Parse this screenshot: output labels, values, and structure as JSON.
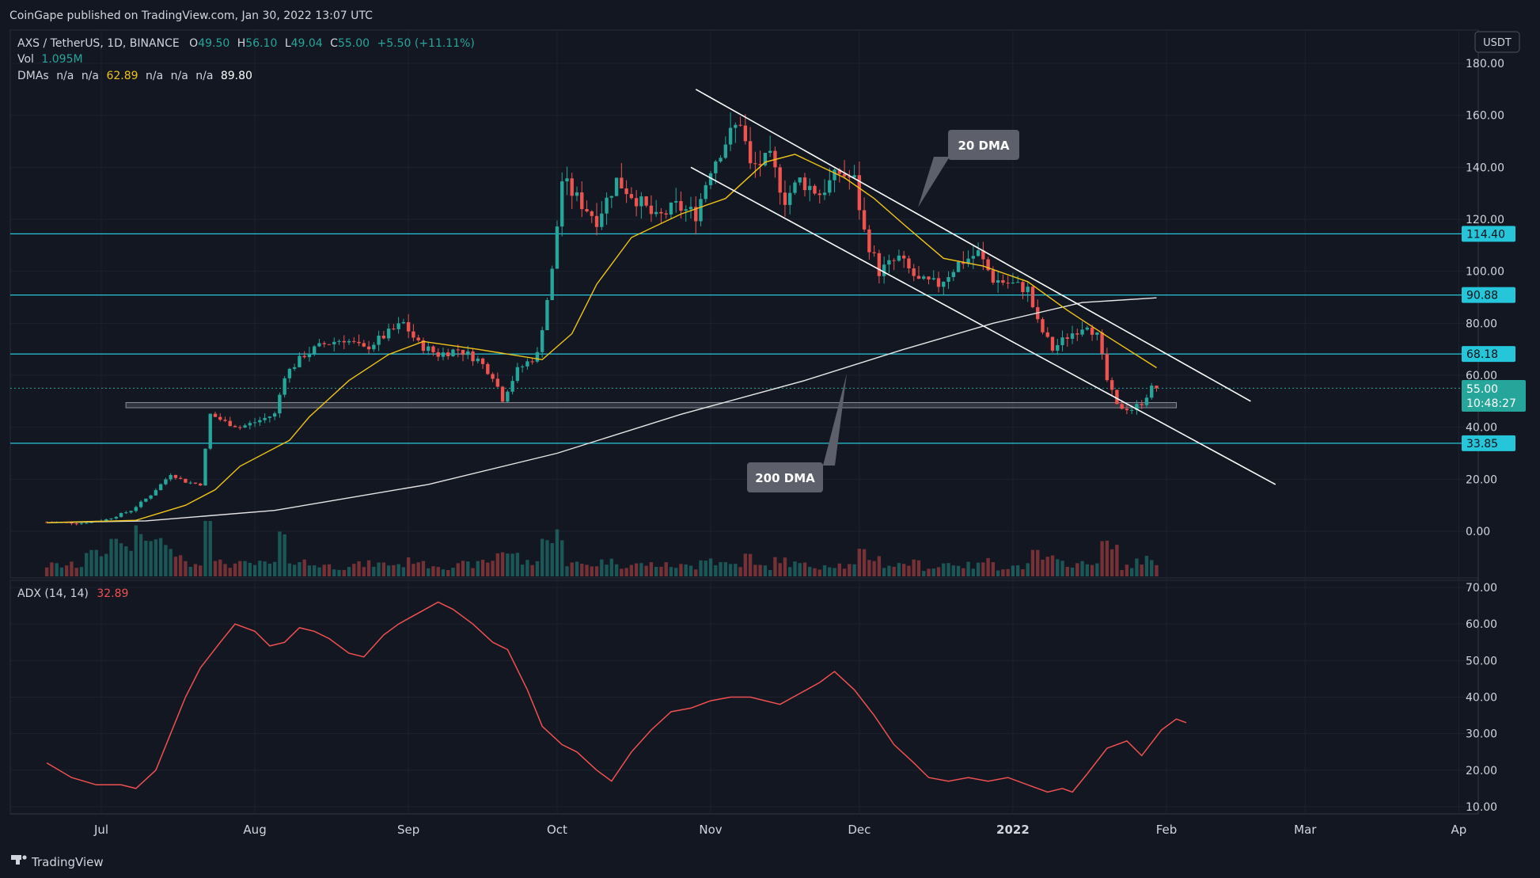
{
  "header": {
    "published": "CoinGape published on TradingView.com, Jan 30, 2022 13:07 UTC"
  },
  "legend": {
    "symbol": "AXS / TetherUS, 1D, BINANCE",
    "o_label": "O",
    "o": "49.50",
    "h_label": "H",
    "h": "56.10",
    "l_label": "L",
    "l": "49.04",
    "c_label": "C",
    "c": "55.00",
    "change": "+5.50 (+11.11%)",
    "vol_label": "Vol",
    "vol": "1.095M",
    "dmas_label": "DMAs",
    "na": "n/a",
    "dma20": "62.89",
    "dma200": "89.80"
  },
  "currency": "USDT",
  "adx_legend": {
    "label": "ADX (14, 14)",
    "value": "32.89"
  },
  "annotations": {
    "dma20_callout": "20 DMA",
    "dma200_callout": "200 DMA"
  },
  "price_tags": {
    "last": "55.00",
    "countdown": "10:48:27",
    "levels": [
      "114.40",
      "90.88",
      "68.18",
      "33.85"
    ]
  },
  "footer": {
    "brand": "TradingView"
  },
  "colors": {
    "bg": "#131722",
    "up": "#26a69a",
    "down": "#ef5350",
    "level": "#26c6da",
    "dma20": "#f0c419",
    "dma200": "#e6e6e6",
    "adx": "#f05050",
    "trendline": "#ffffff"
  },
  "chart_data": [
    {
      "type": "candlestick",
      "title": "AXS / TetherUS, 1D, BINANCE",
      "x_ticks": [
        "Jul",
        "Aug",
        "Sep",
        "Oct",
        "Nov",
        "Dec",
        "2022",
        "Feb",
        "Mar",
        "Ap"
      ],
      "y_ticks": [
        "180.00",
        "160.00",
        "140.00",
        "120.00",
        "100.00",
        "80.00",
        "60.00",
        "40.00",
        "20.00",
        "0.00"
      ],
      "ylim": [
        -15,
        185
      ],
      "date_range": [
        "2021-06-20",
        "2022-01-30"
      ],
      "horizontal_levels": [
        114.4,
        90.88,
        68.18,
        33.85
      ],
      "support_zone": [
        47.5,
        49.5
      ],
      "price_path": [
        [
          "2021-06-20",
          3.5
        ],
        [
          "2021-06-28",
          3.2
        ],
        [
          "2021-07-03",
          4.5
        ],
        [
          "2021-07-08",
          8
        ],
        [
          "2021-07-12",
          14
        ],
        [
          "2021-07-16",
          22
        ],
        [
          "2021-07-19",
          19
        ],
        [
          "2021-07-22",
          18
        ],
        [
          "2021-07-24",
          45
        ],
        [
          "2021-07-27",
          42
        ],
        [
          "2021-07-30",
          40
        ],
        [
          "2021-08-02",
          42
        ],
        [
          "2021-08-06",
          45
        ],
        [
          "2021-08-08",
          60
        ],
        [
          "2021-08-12",
          68
        ],
        [
          "2021-08-16",
          72
        ],
        [
          "2021-08-20",
          74
        ],
        [
          "2021-08-24",
          70
        ],
        [
          "2021-08-28",
          75
        ],
        [
          "2021-09-01",
          80
        ],
        [
          "2021-09-04",
          72
        ],
        [
          "2021-09-08",
          68
        ],
        [
          "2021-09-12",
          70
        ],
        [
          "2021-09-16",
          66
        ],
        [
          "2021-09-19",
          60
        ],
        [
          "2021-09-21",
          51
        ],
        [
          "2021-09-24",
          62
        ],
        [
          "2021-09-28",
          68
        ],
        [
          "2021-10-01",
          100
        ],
        [
          "2021-10-03",
          135
        ],
        [
          "2021-10-06",
          128
        ],
        [
          "2021-10-10",
          120
        ],
        [
          "2021-10-14",
          135
        ],
        [
          "2021-10-18",
          128
        ],
        [
          "2021-10-22",
          120
        ],
        [
          "2021-10-26",
          125
        ],
        [
          "2021-10-30",
          122
        ],
        [
          "2021-11-02",
          140
        ],
        [
          "2021-11-05",
          150
        ],
        [
          "2021-11-08",
          158
        ],
        [
          "2021-11-10",
          140
        ],
        [
          "2021-11-14",
          143
        ],
        [
          "2021-11-17",
          128
        ],
        [
          "2021-11-20",
          135
        ],
        [
          "2021-11-24",
          130
        ],
        [
          "2021-11-28",
          138
        ],
        [
          "2021-12-01",
          135
        ],
        [
          "2021-12-03",
          115
        ],
        [
          "2021-12-06",
          100
        ],
        [
          "2021-12-10",
          105
        ],
        [
          "2021-12-14",
          96
        ],
        [
          "2021-12-18",
          95
        ],
        [
          "2021-12-22",
          103
        ],
        [
          "2021-12-26",
          107
        ],
        [
          "2021-12-29",
          97
        ],
        [
          "2022-01-02",
          95
        ],
        [
          "2022-01-05",
          93
        ],
        [
          "2022-01-07",
          80
        ],
        [
          "2022-01-10",
          70
        ],
        [
          "2022-01-13",
          75
        ],
        [
          "2022-01-17",
          80
        ],
        [
          "2022-01-19",
          75
        ],
        [
          "2022-01-21",
          58
        ],
        [
          "2022-01-23",
          48
        ],
        [
          "2022-01-26",
          47
        ],
        [
          "2022-01-28",
          49.5
        ],
        [
          "2022-01-30",
          55
        ]
      ],
      "series": [
        {
          "name": "DMA 20",
          "points": [
            [
              "2021-06-20",
              3.3
            ],
            [
              "2021-07-08",
              4.2
            ],
            [
              "2021-07-18",
              10
            ],
            [
              "2021-07-24",
              16
            ],
            [
              "2021-07-29",
              25
            ],
            [
              "2021-08-08",
              35
            ],
            [
              "2021-08-12",
              44
            ],
            [
              "2021-08-20",
              58
            ],
            [
              "2021-08-28",
              68
            ],
            [
              "2021-09-04",
              73
            ],
            [
              "2021-09-15",
              70
            ],
            [
              "2021-09-28",
              66
            ],
            [
              "2021-10-04",
              76
            ],
            [
              "2021-10-09",
              95
            ],
            [
              "2021-10-16",
              113
            ],
            [
              "2021-10-26",
              122
            ],
            [
              "2021-11-04",
              128
            ],
            [
              "2021-11-12",
              142
            ],
            [
              "2021-11-18",
              145
            ],
            [
              "2021-11-28",
              136
            ],
            [
              "2021-12-04",
              128
            ],
            [
              "2021-12-10",
              118
            ],
            [
              "2021-12-18",
              105
            ],
            [
              "2021-12-26",
              102
            ],
            [
              "2022-01-04",
              96
            ],
            [
              "2022-01-12",
              85
            ],
            [
              "2022-01-20",
              75
            ],
            [
              "2022-01-30",
              62.89
            ]
          ]
        },
        {
          "name": "DMA 200",
          "points": [
            [
              "2021-06-20",
              3.3
            ],
            [
              "2021-07-10",
              4
            ],
            [
              "2021-08-05",
              8
            ],
            [
              "2021-09-05",
              18
            ],
            [
              "2021-10-01",
              30
            ],
            [
              "2021-10-26",
              45
            ],
            [
              "2021-11-20",
              58
            ],
            [
              "2021-12-10",
              70
            ],
            [
              "2021-12-28",
              80
            ],
            [
              "2022-01-15",
              88
            ],
            [
              "2022-01-30",
              89.8
            ]
          ]
        }
      ],
      "trendlines": [
        {
          "name": "channel upper",
          "points": [
            [
              "2021-10-29",
              170
            ],
            [
              "2022-02-18",
              50
            ]
          ]
        },
        {
          "name": "channel lower",
          "points": [
            [
              "2021-10-28",
              140
            ],
            [
              "2022-02-23",
              18
            ]
          ]
        }
      ]
    },
    {
      "type": "line",
      "title": "ADX (14, 14)",
      "y_ticks": [
        "70.00",
        "60.00",
        "50.00",
        "40.00",
        "30.00",
        "20.00",
        "10.00"
      ],
      "ylim": [
        8,
        72
      ],
      "series": [
        {
          "name": "ADX",
          "points": [
            [
              "2021-06-20",
              22
            ],
            [
              "2021-06-25",
              18
            ],
            [
              "2021-06-30",
              16
            ],
            [
              "2021-07-05",
              16
            ],
            [
              "2021-07-08",
              15
            ],
            [
              "2021-07-12",
              20
            ],
            [
              "2021-07-15",
              30
            ],
            [
              "2021-07-18",
              40
            ],
            [
              "2021-07-21",
              48
            ],
            [
              "2021-07-25",
              55
            ],
            [
              "2021-07-28",
              60
            ],
            [
              "2021-08-01",
              58
            ],
            [
              "2021-08-04",
              54
            ],
            [
              "2021-08-07",
              55
            ],
            [
              "2021-08-10",
              59
            ],
            [
              "2021-08-13",
              58
            ],
            [
              "2021-08-16",
              56
            ],
            [
              "2021-08-20",
              52
            ],
            [
              "2021-08-23",
              51
            ],
            [
              "2021-08-27",
              57
            ],
            [
              "2021-08-30",
              60
            ],
            [
              "2021-09-03",
              63
            ],
            [
              "2021-09-07",
              66
            ],
            [
              "2021-09-10",
              64
            ],
            [
              "2021-09-14",
              60
            ],
            [
              "2021-09-18",
              55
            ],
            [
              "2021-09-21",
              53
            ],
            [
              "2021-09-25",
              42
            ],
            [
              "2021-09-28",
              32
            ],
            [
              "2021-10-02",
              27
            ],
            [
              "2021-10-05",
              25
            ],
            [
              "2021-10-09",
              20
            ],
            [
              "2021-10-12",
              17
            ],
            [
              "2021-10-16",
              25
            ],
            [
              "2021-10-20",
              31
            ],
            [
              "2021-10-24",
              36
            ],
            [
              "2021-10-28",
              37
            ],
            [
              "2021-11-01",
              39
            ],
            [
              "2021-11-05",
              40
            ],
            [
              "2021-11-09",
              40
            ],
            [
              "2021-11-12",
              39
            ],
            [
              "2021-11-15",
              38
            ],
            [
              "2021-11-19",
              41
            ],
            [
              "2021-11-23",
              44
            ],
            [
              "2021-11-26",
              47
            ],
            [
              "2021-11-30",
              42
            ],
            [
              "2021-12-04",
              35
            ],
            [
              "2021-12-08",
              27
            ],
            [
              "2021-12-12",
              22
            ],
            [
              "2021-12-15",
              18
            ],
            [
              "2021-12-19",
              17
            ],
            [
              "2021-12-23",
              18
            ],
            [
              "2021-12-27",
              17
            ],
            [
              "2021-12-31",
              18
            ],
            [
              "2022-01-04",
              16
            ],
            [
              "2022-01-08",
              14
            ],
            [
              "2022-01-11",
              15
            ],
            [
              "2022-01-13",
              14
            ],
            [
              "2022-01-16",
              19
            ],
            [
              "2022-01-20",
              26
            ],
            [
              "2022-01-24",
              28
            ],
            [
              "2022-01-27",
              24
            ],
            [
              "2022-01-31",
              31
            ],
            [
              "2022-02-03",
              34
            ],
            [
              "2022-02-05",
              33
            ]
          ]
        }
      ]
    }
  ]
}
